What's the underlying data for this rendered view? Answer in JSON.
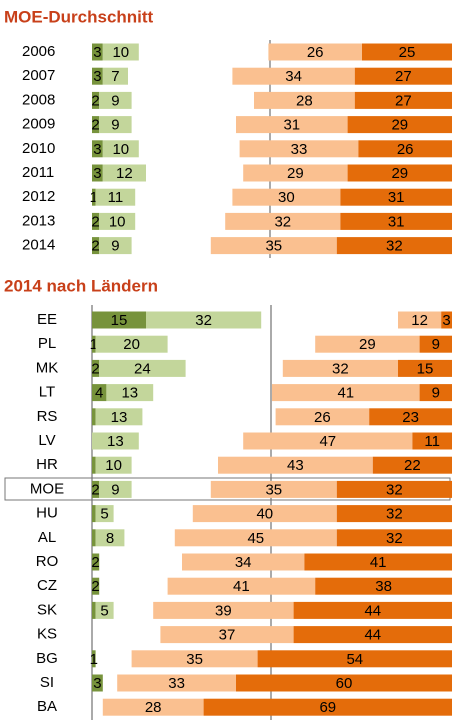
{
  "chart_data": [
    {
      "type": "bar",
      "title": "MOE-Durchschnitt",
      "categories": [
        "2006",
        "2007",
        "2008",
        "2009",
        "2010",
        "2011",
        "2012",
        "2013",
        "2014"
      ],
      "series": [
        {
          "side": "left",
          "color": "#77933c",
          "values": [
            3,
            3,
            2,
            2,
            3,
            3,
            1,
            2,
            2
          ]
        },
        {
          "side": "left",
          "color": "#c3d69b",
          "values": [
            10,
            7,
            9,
            9,
            10,
            12,
            11,
            10,
            9
          ]
        },
        {
          "side": "right",
          "color": "#fac090",
          "values": [
            26,
            34,
            28,
            31,
            33,
            29,
            30,
            32,
            35
          ]
        },
        {
          "side": "right",
          "color": "#e46c0a",
          "values": [
            25,
            27,
            27,
            29,
            26,
            29,
            31,
            31,
            32
          ]
        }
      ]
    },
    {
      "type": "bar",
      "title": "2014 nach Ländern",
      "categories": [
        "EE",
        "PL",
        "MK",
        "LT",
        "RS",
        "LV",
        "HR",
        "MOE",
        "HU",
        "AL",
        "RO",
        "CZ",
        "SK",
        "KS",
        "BG",
        "SI",
        "BA"
      ],
      "series": [
        {
          "side": "left",
          "color": "#77933c",
          "values": [
            15,
            1,
            2,
            4,
            1,
            null,
            1,
            2,
            1,
            1,
            2,
            2,
            1,
            null,
            1,
            3,
            null
          ],
          "value_labels": [
            "15",
            "1",
            "2",
            "4",
            null,
            null,
            null,
            "2",
            null,
            null,
            "2",
            "2",
            null,
            null,
            "1",
            "3",
            null
          ]
        },
        {
          "side": "left",
          "color": "#c3d69b",
          "values": [
            32,
            20,
            24,
            13,
            13,
            13,
            10,
            9,
            5,
            8,
            null,
            null,
            5,
            null,
            null,
            null,
            null
          ]
        },
        {
          "side": "right",
          "color": "#fac090",
          "values": [
            12,
            29,
            32,
            41,
            26,
            47,
            43,
            35,
            40,
            45,
            34,
            41,
            39,
            37,
            35,
            33,
            28
          ]
        },
        {
          "side": "right",
          "color": "#e46c0a",
          "values": [
            3,
            9,
            15,
            9,
            23,
            11,
            22,
            32,
            32,
            32,
            41,
            38,
            44,
            44,
            54,
            60,
            69
          ]
        }
      ]
    }
  ]
}
